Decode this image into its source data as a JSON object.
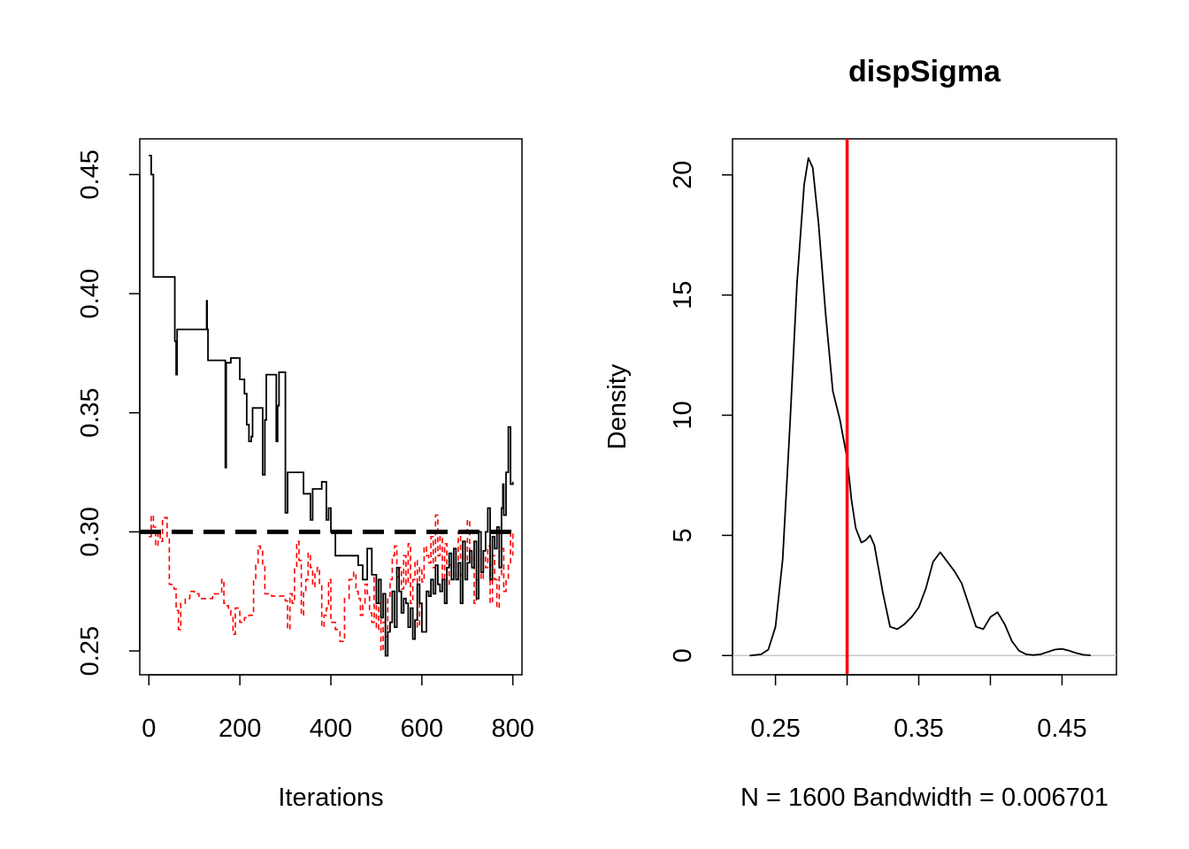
{
  "chart_data": [
    {
      "type": "line",
      "title": "",
      "xlabel": "Iterations",
      "ylabel": "",
      "xlim": [
        -20,
        820
      ],
      "ylim": [
        0.24,
        0.465
      ],
      "x_ticks": [
        0,
        200,
        400,
        600,
        800
      ],
      "x_tick_labels": [
        "0",
        "200",
        "400",
        "600",
        "800"
      ],
      "y_ticks": [
        0.25,
        0.3,
        0.35,
        0.4,
        0.45
      ],
      "y_tick_labels": [
        "0.25",
        "0.30",
        "0.35",
        "0.40",
        "0.45"
      ],
      "grid": false,
      "reference_line": {
        "y": 0.3,
        "style": "dashed",
        "color": "#000000"
      },
      "series": [
        {
          "color": "#000000",
          "style": "solid",
          "x": [
            0,
            5,
            10,
            20,
            40,
            55,
            57,
            60,
            62,
            65,
            100,
            120,
            127,
            128,
            130,
            150,
            165,
            168,
            170,
            180,
            200,
            210,
            215,
            220,
            225,
            228,
            232,
            240,
            250,
            255,
            258,
            265,
            270,
            280,
            283,
            286,
            290,
            295,
            300,
            305,
            310,
            320,
            330,
            340,
            350,
            355,
            360,
            370,
            380,
            385,
            390,
            395,
            400,
            410,
            420,
            430,
            440,
            460,
            470,
            480,
            490,
            500,
            505,
            510,
            515,
            520,
            525,
            530,
            535,
            540,
            545,
            550,
            555,
            560,
            565,
            570,
            575,
            580,
            585,
            590,
            595,
            600,
            610,
            615,
            620,
            625,
            630,
            635,
            640,
            645,
            650,
            655,
            660,
            665,
            670,
            675,
            680,
            685,
            690,
            695,
            700,
            705,
            710,
            715,
            720,
            725,
            730,
            735,
            740,
            745,
            750,
            755,
            760,
            765,
            770,
            775,
            778,
            780,
            785,
            790,
            795,
            800
          ],
          "values": [
            0.458,
            0.45,
            0.407,
            0.407,
            0.407,
            0.407,
            0.38,
            0.366,
            0.385,
            0.385,
            0.385,
            0.385,
            0.397,
            0.385,
            0.372,
            0.372,
            0.372,
            0.327,
            0.371,
            0.373,
            0.364,
            0.358,
            0.345,
            0.338,
            0.34,
            0.352,
            0.352,
            0.352,
            0.324,
            0.347,
            0.366,
            0.366,
            0.366,
            0.338,
            0.353,
            0.367,
            0.367,
            0.367,
            0.308,
            0.325,
            0.325,
            0.325,
            0.325,
            0.316,
            0.316,
            0.305,
            0.318,
            0.318,
            0.321,
            0.321,
            0.305,
            0.31,
            0.3,
            0.29,
            0.29,
            0.29,
            0.29,
            0.286,
            0.28,
            0.293,
            0.282,
            0.27,
            0.28,
            0.264,
            0.274,
            0.248,
            0.258,
            0.262,
            0.275,
            0.26,
            0.285,
            0.275,
            0.266,
            0.272,
            0.27,
            0.26,
            0.268,
            0.255,
            0.263,
            0.278,
            0.27,
            0.258,
            0.275,
            0.273,
            0.28,
            0.274,
            0.286,
            0.278,
            0.275,
            0.28,
            0.27,
            0.285,
            0.291,
            0.28,
            0.293,
            0.28,
            0.287,
            0.27,
            0.296,
            0.28,
            0.287,
            0.292,
            0.285,
            0.296,
            0.272,
            0.3,
            0.283,
            0.292,
            0.3,
            0.31,
            0.28,
            0.298,
            0.293,
            0.302,
            0.285,
            0.31,
            0.32,
            0.307,
            0.325,
            0.344,
            0.32,
            0.321
          ]
        },
        {
          "color": "#ff0000",
          "style": "dashed",
          "x": [
            0,
            5,
            10,
            15,
            20,
            25,
            30,
            35,
            40,
            45,
            50,
            55,
            60,
            65,
            70,
            80,
            90,
            100,
            110,
            120,
            130,
            140,
            150,
            160,
            165,
            170,
            175,
            180,
            185,
            190,
            195,
            200,
            210,
            220,
            230,
            235,
            240,
            245,
            250,
            255,
            260,
            270,
            280,
            290,
            300,
            305,
            310,
            315,
            320,
            325,
            330,
            335,
            340,
            345,
            350,
            355,
            360,
            365,
            370,
            375,
            380,
            385,
            390,
            395,
            400,
            410,
            420,
            430,
            440,
            450,
            455,
            460,
            465,
            470,
            475,
            480,
            485,
            490,
            495,
            500,
            505,
            510,
            515,
            520,
            525,
            530,
            535,
            540,
            545,
            550,
            555,
            560,
            565,
            570,
            575,
            580,
            585,
            590,
            595,
            600,
            605,
            610,
            615,
            620,
            625,
            630,
            635,
            640,
            645,
            650,
            655,
            660,
            665,
            670,
            675,
            680,
            685,
            690,
            695,
            700,
            705,
            710,
            715,
            720,
            725,
            730,
            735,
            740,
            745,
            750,
            755,
            760,
            765,
            770,
            775,
            780,
            785,
            790,
            795,
            800
          ],
          "values": [
            0.298,
            0.307,
            0.302,
            0.294,
            0.3,
            0.296,
            0.305,
            0.306,
            0.298,
            0.278,
            0.277,
            0.276,
            0.267,
            0.259,
            0.27,
            0.272,
            0.275,
            0.274,
            0.272,
            0.272,
            0.272,
            0.274,
            0.274,
            0.28,
            0.27,
            0.269,
            0.267,
            0.265,
            0.257,
            0.268,
            0.268,
            0.262,
            0.264,
            0.265,
            0.28,
            0.286,
            0.294,
            0.293,
            0.286,
            0.274,
            0.274,
            0.273,
            0.273,
            0.273,
            0.271,
            0.259,
            0.274,
            0.27,
            0.285,
            0.296,
            0.288,
            0.265,
            0.275,
            0.28,
            0.291,
            0.285,
            0.277,
            0.283,
            0.285,
            0.278,
            0.26,
            0.265,
            0.268,
            0.28,
            0.262,
            0.259,
            0.254,
            0.272,
            0.28,
            0.283,
            0.275,
            0.272,
            0.265,
            0.27,
            0.278,
            0.274,
            0.266,
            0.262,
            0.281,
            0.259,
            0.27,
            0.25,
            0.262,
            0.256,
            0.273,
            0.28,
            0.29,
            0.294,
            0.281,
            0.285,
            0.276,
            0.29,
            0.278,
            0.295,
            0.27,
            0.28,
            0.288,
            0.26,
            0.285,
            0.279,
            0.294,
            0.29,
            0.287,
            0.298,
            0.285,
            0.307,
            0.29,
            0.3,
            0.28,
            0.295,
            0.278,
            0.286,
            0.287,
            0.281,
            0.287,
            0.3,
            0.282,
            0.29,
            0.284,
            0.305,
            0.287,
            0.29,
            0.27,
            0.28,
            0.3,
            0.28,
            0.29,
            0.285,
            0.294,
            0.27,
            0.29,
            0.28,
            0.268,
            0.282,
            0.293,
            0.275,
            0.28,
            0.287,
            0.3,
            0.29
          ]
        }
      ]
    },
    {
      "type": "line",
      "title": "dispSigma",
      "xlabel": "N = 1600   Bandwidth = 0.006701",
      "ylabel": "Density",
      "xlim": [
        0.22,
        0.488
      ],
      "ylim": [
        -0.8,
        21.5
      ],
      "x_ticks": [
        0.25,
        0.3,
        0.35,
        0.4,
        0.45
      ],
      "x_tick_labels": [
        "0.25",
        "",
        "0.35",
        "",
        "0.45"
      ],
      "y_ticks": [
        0,
        5,
        10,
        15,
        20
      ],
      "y_tick_labels": [
        "0",
        "5",
        "10",
        "15",
        "20"
      ],
      "grid": false,
      "baseline": {
        "y": 0,
        "color": "#bebebe"
      },
      "reference_line": {
        "x": 0.3,
        "color": "#ff0000"
      },
      "series": [
        {
          "color": "#000000",
          "style": "solid",
          "x": [
            0.232,
            0.24,
            0.245,
            0.25,
            0.255,
            0.26,
            0.265,
            0.27,
            0.273,
            0.276,
            0.28,
            0.285,
            0.29,
            0.295,
            0.3,
            0.303,
            0.306,
            0.31,
            0.313,
            0.316,
            0.319,
            0.322,
            0.325,
            0.33,
            0.335,
            0.34,
            0.345,
            0.35,
            0.355,
            0.36,
            0.365,
            0.37,
            0.375,
            0.38,
            0.385,
            0.39,
            0.395,
            0.4,
            0.405,
            0.41,
            0.415,
            0.42,
            0.425,
            0.43,
            0.435,
            0.44,
            0.445,
            0.45,
            0.455,
            0.46,
            0.465,
            0.47
          ],
          "values": [
            0.0,
            0.05,
            0.25,
            1.2,
            4.0,
            9.5,
            15.5,
            19.6,
            20.7,
            20.3,
            18.0,
            14.2,
            11.0,
            9.8,
            8.2,
            6.5,
            5.3,
            4.7,
            4.8,
            5.0,
            4.6,
            3.6,
            2.6,
            1.2,
            1.1,
            1.3,
            1.6,
            2.0,
            2.8,
            3.9,
            4.3,
            3.9,
            3.5,
            3.0,
            2.1,
            1.2,
            1.1,
            1.6,
            1.8,
            1.3,
            0.6,
            0.2,
            0.05,
            0.02,
            0.05,
            0.15,
            0.25,
            0.28,
            0.2,
            0.1,
            0.03,
            0.01
          ]
        }
      ]
    }
  ]
}
